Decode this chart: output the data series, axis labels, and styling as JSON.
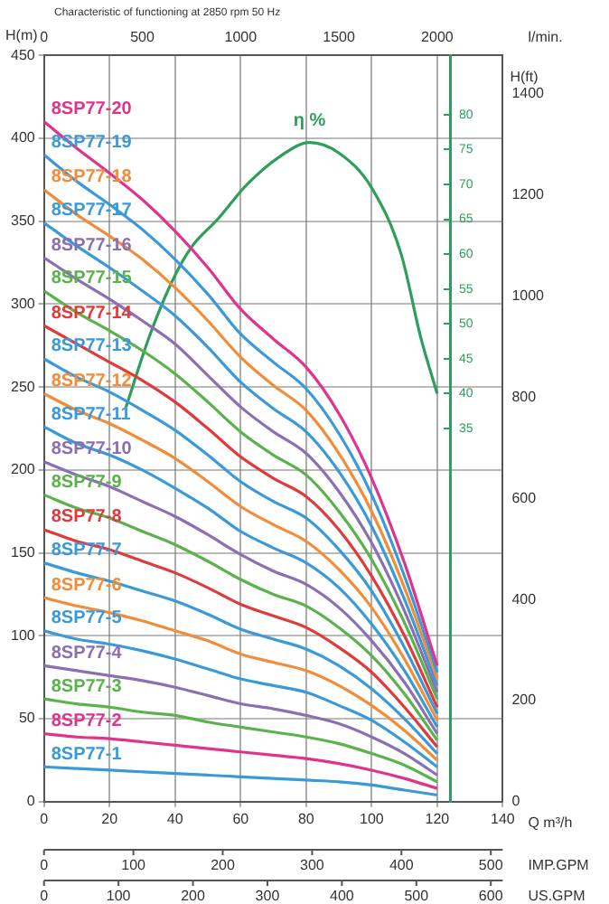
{
  "chart_data": {
    "type": "line",
    "title": "Characteristic of functioning at 2850 rpm 50 Hz",
    "xlabel": "Q m³/h",
    "ylabel": "H(m)",
    "y2label": "H(ft)",
    "x2label": "l/min.",
    "annotations": [
      "0",
      "100",
      "200",
      "300",
      "400",
      "500",
      "IMP.GPM",
      "0",
      "100",
      "200",
      "300",
      "400",
      "500",
      "600",
      "US.GPM"
    ],
    "xlim": [
      0,
      140
    ],
    "xticks": [
      0,
      20,
      40,
      60,
      80,
      100,
      120,
      140
    ],
    "x2lim": [
      0,
      2333.3
    ],
    "x2ticks": [
      0,
      500,
      1000,
      1500,
      2000
    ],
    "ylim": [
      0,
      450
    ],
    "yticks": [
      0,
      50,
      100,
      150,
      200,
      250,
      300,
      350,
      400,
      450
    ],
    "y2lim": [
      0,
      1476.4
    ],
    "y2ticks": [
      0,
      200,
      400,
      600,
      800,
      1000,
      1200,
      1400
    ],
    "y3lim": [
      -18.5,
      88.5
    ],
    "y3ticks": [
      35,
      40,
      45,
      50,
      55,
      60,
      65,
      70,
      75,
      80
    ],
    "grid": true,
    "marker": "none",
    "x": [
      0,
      10,
      20,
      30,
      40,
      50,
      60,
      70,
      80,
      90,
      100,
      110,
      120
    ],
    "series": [
      {
        "name": "8SP77-20",
        "color": "#e0348c",
        "values": [
          410,
          394,
          379,
          363,
          344,
          322,
          297,
          279,
          262,
          234,
          195,
          144,
          82
        ]
      },
      {
        "name": "8SP77-19",
        "color": "#3a9ad9",
        "values": [
          390,
          374,
          360,
          345,
          327,
          306,
          282,
          265,
          249,
          222,
          185,
          136,
          78
        ]
      },
      {
        "name": "8SP77-18",
        "color": "#f28c38",
        "values": [
          369,
          354,
          341,
          327,
          310,
          290,
          268,
          251,
          236,
          210,
          175,
          129,
          74
        ]
      },
      {
        "name": "8SP77-17",
        "color": "#3a9ad9",
        "values": [
          349,
          335,
          322,
          308,
          293,
          274,
          253,
          237,
          223,
          199,
          166,
          122,
          70
        ]
      },
      {
        "name": "8SP77-16",
        "color": "#8a70b2",
        "values": [
          328,
          315,
          303,
          290,
          276,
          257,
          238,
          223,
          210,
          187,
          156,
          115,
          66
        ]
      },
      {
        "name": "8SP77-15",
        "color": "#5ab34a",
        "values": [
          308,
          295,
          284,
          272,
          258,
          241,
          223,
          209,
          197,
          175,
          146,
          108,
          62
        ]
      },
      {
        "name": "8SP77-14",
        "color": "#e03a3a",
        "values": [
          287,
          276,
          265,
          254,
          241,
          225,
          208,
          195,
          184,
          164,
          136,
          100,
          57
        ]
      },
      {
        "name": "8SP77-13",
        "color": "#3a9ad9",
        "values": [
          267,
          256,
          247,
          236,
          224,
          209,
          193,
          181,
          171,
          152,
          127,
          93,
          53
        ]
      },
      {
        "name": "8SP77-12",
        "color": "#f28c38",
        "values": [
          246,
          236,
          228,
          218,
          207,
          193,
          178,
          167,
          157,
          140,
          117,
          86,
          49
        ]
      },
      {
        "name": "8SP77-11",
        "color": "#3a9ad9",
        "values": [
          226,
          216,
          209,
          200,
          189,
          177,
          163,
          153,
          144,
          129,
          107,
          79,
          45
        ]
      },
      {
        "name": "8SP77-10",
        "color": "#8a70b2",
        "values": [
          205,
          197,
          190,
          181,
          172,
          161,
          149,
          139,
          131,
          117,
          97,
          72,
          41
        ]
      },
      {
        "name": "8SP77-9",
        "color": "#5ab34a",
        "values": [
          185,
          177,
          171,
          163,
          155,
          145,
          134,
          125,
          118,
          105,
          88,
          65,
          37
        ]
      },
      {
        "name": "8SP77-8",
        "color": "#e03a3a",
        "values": [
          164,
          157,
          152,
          145,
          138,
          129,
          119,
          112,
          105,
          93,
          78,
          57,
          33
        ]
      },
      {
        "name": "8SP77-7",
        "color": "#3a9ad9",
        "values": [
          144,
          138,
          133,
          127,
          121,
          113,
          104,
          98,
          92,
          82,
          68,
          50,
          29
        ]
      },
      {
        "name": "8SP77-6",
        "color": "#f28c38",
        "values": [
          123,
          118,
          114,
          109,
          103,
          97,
          89,
          84,
          79,
          70,
          58,
          43,
          25
        ]
      },
      {
        "name": "8SP77-5",
        "color": "#3a9ad9",
        "values": [
          103,
          98,
          95,
          91,
          86,
          80,
          74,
          70,
          66,
          58,
          49,
          36,
          21
        ]
      },
      {
        "name": "8SP77-4",
        "color": "#8a70b2",
        "values": [
          82,
          79,
          76,
          73,
          69,
          64,
          59,
          56,
          52,
          47,
          39,
          29,
          16
        ]
      },
      {
        "name": "8SP77-3",
        "color": "#5ab34a",
        "values": [
          62,
          59,
          57,
          54,
          52,
          48,
          45,
          42,
          39,
          35,
          29,
          22,
          12
        ]
      },
      {
        "name": "8SP77-2",
        "color": "#e0348c",
        "values": [
          41,
          39,
          38,
          36,
          34,
          32,
          30,
          28,
          26,
          23,
          19,
          14,
          8
        ]
      },
      {
        "name": "8SP77-1",
        "color": "#3a9ad9",
        "values": [
          21,
          20,
          19,
          18,
          17,
          16,
          15,
          14,
          13,
          12,
          10,
          7,
          4
        ]
      },
      {
        "name": "η %",
        "color": "#2e9e5b",
        "axis": "y3",
        "x": [
          25,
          32,
          39,
          45,
          53,
          62,
          72,
          81,
          90,
          100,
          109,
          115,
          120
        ],
        "values": [
          38,
          48,
          56,
          61,
          65,
          70,
          74,
          76,
          74.5,
          69.5,
          60,
          48,
          40
        ]
      }
    ]
  }
}
